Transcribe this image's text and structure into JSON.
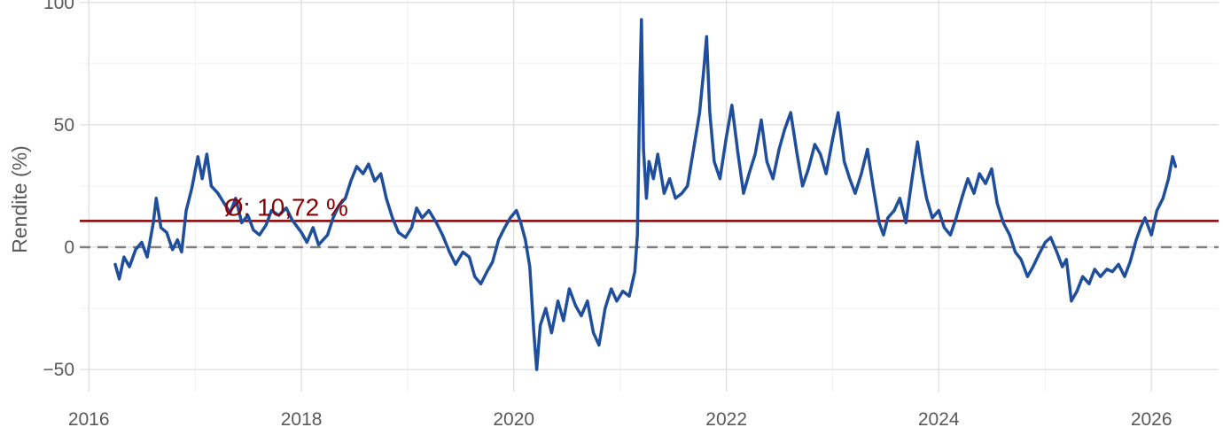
{
  "chart_data": {
    "type": "line",
    "title": "",
    "xlabel": "",
    "ylabel": "Rendite (%)",
    "x_type": "date",
    "xlim": [
      "2015-12-01",
      "2026-08-20"
    ],
    "ylim": [
      -59,
      101
    ],
    "x_ticks": [
      {
        "value": "2016-01-01",
        "label": "2016"
      },
      {
        "value": "2018-01-01",
        "label": "2018"
      },
      {
        "value": "2020-01-01",
        "label": "2020"
      },
      {
        "value": "2022-01-01",
        "label": "2022"
      },
      {
        "value": "2024-01-01",
        "label": "2024"
      },
      {
        "value": "2026-01-01",
        "label": "2026"
      }
    ],
    "y_ticks": [
      {
        "value": -50,
        "label": "−50"
      },
      {
        "value": 0,
        "label": "0"
      },
      {
        "value": 50,
        "label": "50"
      },
      {
        "value": 100,
        "label": "100"
      }
    ],
    "grid": true,
    "reference_lines": [
      {
        "type": "mean",
        "value": 10.72,
        "label": "Ø: 10,72 %",
        "color": "#8b0000",
        "style": "solid"
      },
      {
        "type": "zero",
        "value": 0,
        "color": "#808080",
        "style": "dashed"
      }
    ],
    "series": [
      {
        "color": "#1f4e9c",
        "points": [
          [
            "2016-04-01",
            -7
          ],
          [
            "2016-04-15",
            -13
          ],
          [
            "2016-05-01",
            -4
          ],
          [
            "2016-05-20",
            -8
          ],
          [
            "2016-06-10",
            -1
          ],
          [
            "2016-07-01",
            2
          ],
          [
            "2016-07-20",
            -4
          ],
          [
            "2016-08-10",
            10
          ],
          [
            "2016-08-20",
            20
          ],
          [
            "2016-09-05",
            8
          ],
          [
            "2016-09-25",
            6
          ],
          [
            "2016-10-15",
            -1
          ],
          [
            "2016-11-01",
            3
          ],
          [
            "2016-11-15",
            -2
          ],
          [
            "2016-12-01",
            15
          ],
          [
            "2016-12-20",
            24
          ],
          [
            "2017-01-10",
            37
          ],
          [
            "2017-01-25",
            28
          ],
          [
            "2017-02-10",
            38
          ],
          [
            "2017-02-25",
            25
          ],
          [
            "2017-03-20",
            22
          ],
          [
            "2017-04-10",
            18
          ],
          [
            "2017-05-01",
            14
          ],
          [
            "2017-05-20",
            20
          ],
          [
            "2017-06-10",
            10
          ],
          [
            "2017-07-01",
            13
          ],
          [
            "2017-07-20",
            7
          ],
          [
            "2017-08-10",
            5
          ],
          [
            "2017-09-01",
            9
          ],
          [
            "2017-09-20",
            15
          ],
          [
            "2017-10-15",
            13
          ],
          [
            "2017-11-10",
            16
          ],
          [
            "2017-12-01",
            11
          ],
          [
            "2018-01-01",
            6
          ],
          [
            "2018-01-20",
            2
          ],
          [
            "2018-02-10",
            8
          ],
          [
            "2018-03-01",
            1
          ],
          [
            "2018-04-01",
            5
          ],
          [
            "2018-04-20",
            12
          ],
          [
            "2018-05-10",
            17
          ],
          [
            "2018-06-01",
            20
          ],
          [
            "2018-06-20",
            27
          ],
          [
            "2018-07-10",
            33
          ],
          [
            "2018-08-01",
            30
          ],
          [
            "2018-08-20",
            34
          ],
          [
            "2018-09-10",
            27
          ],
          [
            "2018-10-01",
            30
          ],
          [
            "2018-10-20",
            20
          ],
          [
            "2018-11-10",
            12
          ],
          [
            "2018-12-01",
            6
          ],
          [
            "2018-12-25",
            4
          ],
          [
            "2019-01-15",
            8
          ],
          [
            "2019-02-01",
            16
          ],
          [
            "2019-02-20",
            12
          ],
          [
            "2019-03-15",
            15
          ],
          [
            "2019-04-10",
            10
          ],
          [
            "2019-05-01",
            5
          ],
          [
            "2019-05-25",
            -2
          ],
          [
            "2019-06-15",
            -7
          ],
          [
            "2019-07-10",
            -2
          ],
          [
            "2019-08-01",
            -4
          ],
          [
            "2019-08-20",
            -12
          ],
          [
            "2019-09-10",
            -15
          ],
          [
            "2019-10-01",
            -10
          ],
          [
            "2019-10-20",
            -6
          ],
          [
            "2019-11-10",
            3
          ],
          [
            "2019-12-01",
            8
          ],
          [
            "2019-12-20",
            12
          ],
          [
            "2020-01-10",
            15
          ],
          [
            "2020-01-25",
            10
          ],
          [
            "2020-02-10",
            3
          ],
          [
            "2020-02-25",
            -8
          ],
          [
            "2020-03-10",
            -35
          ],
          [
            "2020-03-20",
            -50
          ],
          [
            "2020-04-01",
            -32
          ],
          [
            "2020-04-20",
            -25
          ],
          [
            "2020-05-10",
            -35
          ],
          [
            "2020-06-01",
            -22
          ],
          [
            "2020-06-20",
            -30
          ],
          [
            "2020-07-10",
            -17
          ],
          [
            "2020-08-01",
            -24
          ],
          [
            "2020-08-20",
            -28
          ],
          [
            "2020-09-10",
            -22
          ],
          [
            "2020-10-01",
            -35
          ],
          [
            "2020-10-20",
            -40
          ],
          [
            "2020-11-10",
            -25
          ],
          [
            "2020-12-01",
            -17
          ],
          [
            "2020-12-20",
            -22
          ],
          [
            "2021-01-10",
            -18
          ],
          [
            "2021-02-01",
            -20
          ],
          [
            "2021-02-20",
            -10
          ],
          [
            "2021-03-01",
            5
          ],
          [
            "2021-03-10",
            70
          ],
          [
            "2021-03-15",
            93
          ],
          [
            "2021-03-22",
            40
          ],
          [
            "2021-04-01",
            20
          ],
          [
            "2021-04-10",
            35
          ],
          [
            "2021-04-25",
            28
          ],
          [
            "2021-05-10",
            38
          ],
          [
            "2021-06-01",
            22
          ],
          [
            "2021-06-20",
            28
          ],
          [
            "2021-07-10",
            20
          ],
          [
            "2021-08-01",
            22
          ],
          [
            "2021-08-20",
            25
          ],
          [
            "2021-09-10",
            40
          ],
          [
            "2021-10-01",
            55
          ],
          [
            "2021-10-15",
            72
          ],
          [
            "2021-10-25",
            86
          ],
          [
            "2021-11-05",
            55
          ],
          [
            "2021-11-20",
            35
          ],
          [
            "2021-12-10",
            28
          ],
          [
            "2022-01-01",
            45
          ],
          [
            "2022-01-20",
            58
          ],
          [
            "2022-02-10",
            38
          ],
          [
            "2022-03-01",
            22
          ],
          [
            "2022-03-20",
            30
          ],
          [
            "2022-04-10",
            38
          ],
          [
            "2022-05-01",
            52
          ],
          [
            "2022-05-20",
            35
          ],
          [
            "2022-06-10",
            28
          ],
          [
            "2022-07-01",
            40
          ],
          [
            "2022-07-20",
            48
          ],
          [
            "2022-08-10",
            55
          ],
          [
            "2022-09-01",
            38
          ],
          [
            "2022-09-20",
            25
          ],
          [
            "2022-10-10",
            32
          ],
          [
            "2022-11-01",
            42
          ],
          [
            "2022-11-20",
            38
          ],
          [
            "2022-12-10",
            30
          ],
          [
            "2023-01-01",
            44
          ],
          [
            "2023-01-20",
            55
          ],
          [
            "2023-02-10",
            35
          ],
          [
            "2023-03-01",
            28
          ],
          [
            "2023-03-20",
            22
          ],
          [
            "2023-04-10",
            30
          ],
          [
            "2023-05-01",
            40
          ],
          [
            "2023-05-20",
            25
          ],
          [
            "2023-06-10",
            10
          ],
          [
            "2023-06-25",
            5
          ],
          [
            "2023-07-10",
            12
          ],
          [
            "2023-08-01",
            15
          ],
          [
            "2023-08-20",
            20
          ],
          [
            "2023-09-10",
            10
          ],
          [
            "2023-10-01",
            28
          ],
          [
            "2023-10-20",
            43
          ],
          [
            "2023-11-05",
            30
          ],
          [
            "2023-11-20",
            20
          ],
          [
            "2023-12-10",
            12
          ],
          [
            "2024-01-01",
            15
          ],
          [
            "2024-01-20",
            8
          ],
          [
            "2024-02-10",
            5
          ],
          [
            "2024-03-01",
            12
          ],
          [
            "2024-03-20",
            20
          ],
          [
            "2024-04-10",
            28
          ],
          [
            "2024-05-01",
            22
          ],
          [
            "2024-05-20",
            30
          ],
          [
            "2024-06-10",
            26
          ],
          [
            "2024-07-01",
            32
          ],
          [
            "2024-07-20",
            18
          ],
          [
            "2024-08-10",
            10
          ],
          [
            "2024-09-01",
            5
          ],
          [
            "2024-09-20",
            -2
          ],
          [
            "2024-10-10",
            -5
          ],
          [
            "2024-11-01",
            -12
          ],
          [
            "2024-11-20",
            -8
          ],
          [
            "2024-12-10",
            -3
          ],
          [
            "2025-01-01",
            2
          ],
          [
            "2025-01-20",
            4
          ],
          [
            "2025-02-10",
            -2
          ],
          [
            "2025-03-01",
            -8
          ],
          [
            "2025-03-15",
            -5
          ],
          [
            "2025-04-01",
            -22
          ],
          [
            "2025-04-20",
            -18
          ],
          [
            "2025-05-10",
            -12
          ],
          [
            "2025-06-01",
            -15
          ],
          [
            "2025-06-20",
            -9
          ],
          [
            "2025-07-10",
            -12
          ],
          [
            "2025-08-01",
            -9
          ],
          [
            "2025-08-20",
            -10
          ],
          [
            "2025-09-10",
            -7
          ],
          [
            "2025-10-01",
            -12
          ],
          [
            "2025-10-20",
            -6
          ],
          [
            "2025-11-10",
            3
          ],
          [
            "2025-11-25",
            8
          ],
          [
            "2025-12-10",
            12
          ],
          [
            "2026-01-01",
            5
          ],
          [
            "2026-01-20",
            15
          ],
          [
            "2026-02-10",
            20
          ],
          [
            "2026-03-01",
            28
          ],
          [
            "2026-03-15",
            37
          ],
          [
            "2026-03-25",
            33
          ]
        ]
      }
    ]
  }
}
